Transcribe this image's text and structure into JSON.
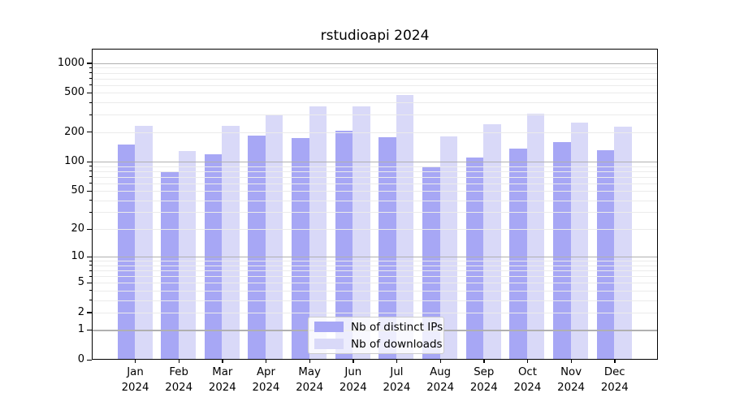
{
  "chart_data": {
    "type": "bar",
    "title": "rstudioapi 2024",
    "categories": [
      "Jan 2024",
      "Feb 2024",
      "Mar 2024",
      "Apr 2024",
      "May 2024",
      "Jun 2024",
      "Jul 2024",
      "Aug 2024",
      "Sep 2024",
      "Oct 2024",
      "Nov 2024",
      "Dec 2024"
    ],
    "series": [
      {
        "name": "Nb of distinct IPs",
        "color": "#a7a7f5",
        "values": [
          150,
          80,
          119,
          184,
          173,
          205,
          176,
          87,
          110,
          135,
          159,
          131
        ]
      },
      {
        "name": "Nb of downloads",
        "color": "#d9d9f8",
        "values": [
          230,
          129,
          233,
          300,
          368,
          368,
          476,
          182,
          240,
          309,
          249,
          228
        ]
      }
    ],
    "yscale": "log1p",
    "ylim": [
      0,
      1400
    ],
    "yticks": [
      0,
      1,
      2,
      5,
      10,
      20,
      50,
      100,
      200,
      500,
      1000
    ],
    "major_gridlines": [
      1,
      10,
      100,
      1000
    ],
    "grid": true,
    "legend_position": "lower-center",
    "xlabel": "",
    "ylabel": ""
  },
  "colors": {
    "major_grid": "#b0b0b0",
    "minor_grid": "#ebebeb",
    "axis": "#000000",
    "legend_border": "#cccccc"
  }
}
